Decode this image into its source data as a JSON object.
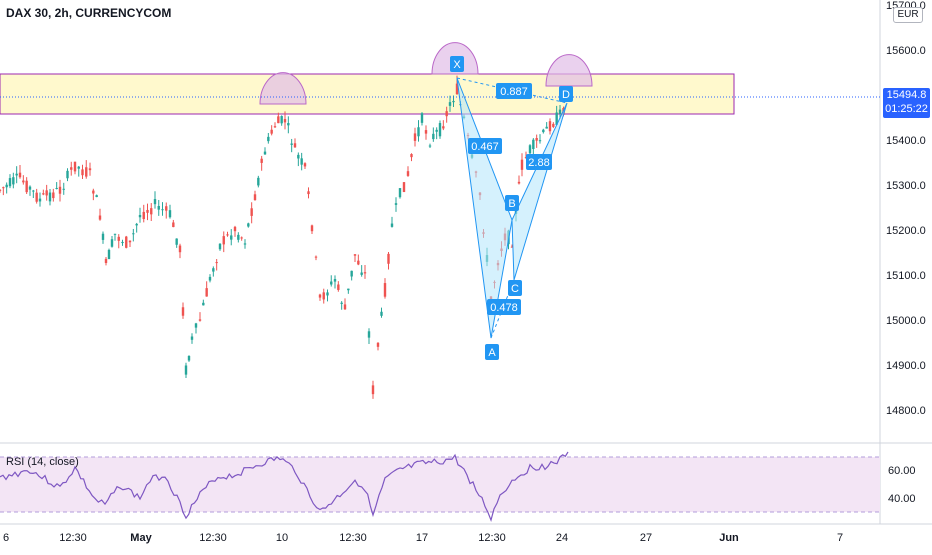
{
  "title": "DAX 30, 2h, CURRENCYCOM",
  "currency": "EUR",
  "last_price": "15494.8",
  "countdown": "01:25:22",
  "rsi_label": "RSI (14, close)",
  "price_axis": [
    "15700.0",
    "15600.0",
    "15500.0",
    "15400.0",
    "15300.0",
    "15200.0",
    "15100.0",
    "15000.0",
    "14900.0",
    "14800.0"
  ],
  "rsi_axis": [
    "60.00",
    "40.00"
  ],
  "time_axis": [
    "6",
    "12:30",
    "May",
    "12:30",
    "10",
    "12:30",
    "17",
    "12:30",
    "24",
    "27",
    "Jun",
    "7"
  ],
  "pattern": {
    "points": [
      "X",
      "A",
      "B",
      "C",
      "D"
    ],
    "ratios": [
      "0.467",
      "0.478",
      "2.88",
      "0.887"
    ]
  },
  "colors": {
    "up": "#26a69a",
    "down": "#ef5350",
    "zone_fill": "#fff8c4",
    "zone_border": "#9c27b0",
    "pattern_fill": "#b3e5fc",
    "pattern_line": "#2196f3",
    "rsi_band": "#f3e5f5",
    "rsi_line": "#7e57c2",
    "arc": "#e1bee7"
  }
}
